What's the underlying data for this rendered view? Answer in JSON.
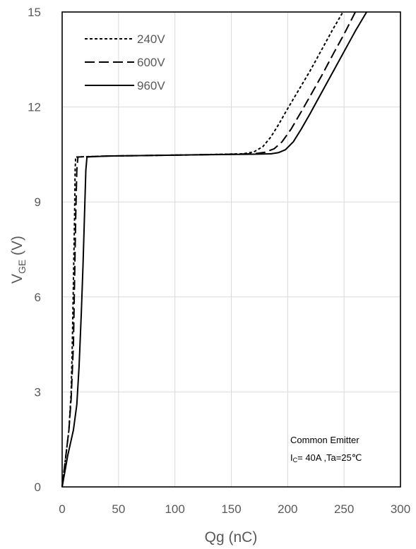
{
  "chart_data": {
    "type": "line",
    "xlabel": "Qg (nC)",
    "ylabel": {
      "main": "V",
      "sub": "GE",
      "tail": " (V)"
    },
    "xlim": [
      0,
      300
    ],
    "ylim": [
      0,
      15
    ],
    "xticks": [
      "0",
      "50",
      "100",
      "150",
      "200",
      "250",
      "300"
    ],
    "yticks": [
      "0",
      "3",
      "6",
      "9",
      "12",
      "15"
    ],
    "grid": true,
    "legend_position": "top-left",
    "series": [
      {
        "name": "240V",
        "dash": "short-dash",
        "points": [
          [
            0,
            0
          ],
          [
            3,
            0.9
          ],
          [
            6,
            1.8
          ],
          [
            8,
            3.0
          ],
          [
            9,
            4.5
          ],
          [
            10,
            6.5
          ],
          [
            11,
            8.5
          ],
          [
            11.5,
            10.0
          ],
          [
            12,
            10.42
          ],
          [
            40,
            10.45
          ],
          [
            80,
            10.47
          ],
          [
            120,
            10.49
          ],
          [
            160,
            10.52
          ],
          [
            170,
            10.58
          ],
          [
            178,
            10.75
          ],
          [
            185,
            11.05
          ],
          [
            192,
            11.45
          ],
          [
            200,
            11.95
          ],
          [
            210,
            12.55
          ],
          [
            220,
            13.15
          ],
          [
            230,
            13.8
          ],
          [
            240,
            14.45
          ],
          [
            249,
            15.0
          ]
        ]
      },
      {
        "name": "600V",
        "dash": "long-dash",
        "points": [
          [
            0,
            0
          ],
          [
            3,
            0.9
          ],
          [
            6,
            1.8
          ],
          [
            8,
            2.8
          ],
          [
            10,
            4.5
          ],
          [
            11,
            6.5
          ],
          [
            12,
            8.5
          ],
          [
            13,
            10.0
          ],
          [
            14,
            10.42
          ],
          [
            40,
            10.45
          ],
          [
            80,
            10.47
          ],
          [
            120,
            10.49
          ],
          [
            170,
            10.52
          ],
          [
            180,
            10.57
          ],
          [
            188,
            10.68
          ],
          [
            195,
            10.9
          ],
          [
            203,
            11.3
          ],
          [
            212,
            11.85
          ],
          [
            220,
            12.35
          ],
          [
            230,
            12.98
          ],
          [
            240,
            13.65
          ],
          [
            250,
            14.3
          ],
          [
            260,
            15.0
          ]
        ]
      },
      {
        "name": "960V",
        "dash": "solid",
        "points": [
          [
            0,
            0
          ],
          [
            5,
            1.0
          ],
          [
            10,
            1.8
          ],
          [
            13,
            2.6
          ],
          [
            15,
            3.8
          ],
          [
            17,
            5.5
          ],
          [
            18.5,
            7.0
          ],
          [
            20,
            8.8
          ],
          [
            21,
            10.0
          ],
          [
            22,
            10.42
          ],
          [
            40,
            10.45
          ],
          [
            80,
            10.47
          ],
          [
            120,
            10.49
          ],
          [
            170,
            10.51
          ],
          [
            185,
            10.52
          ],
          [
            192,
            10.56
          ],
          [
            198,
            10.65
          ],
          [
            205,
            10.9
          ],
          [
            212,
            11.3
          ],
          [
            220,
            11.8
          ],
          [
            230,
            12.45
          ],
          [
            240,
            13.1
          ],
          [
            250,
            13.75
          ],
          [
            260,
            14.4
          ],
          [
            270,
            15.0
          ]
        ]
      }
    ],
    "annotation": {
      "line1": "Common Emitter",
      "line2_main": "I",
      "line2_sub": "C",
      "line2_tail": "= 40A ,Ta=25℃"
    }
  }
}
